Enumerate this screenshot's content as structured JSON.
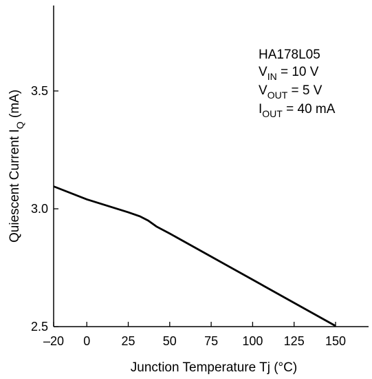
{
  "chart_data": {
    "type": "line",
    "xlabel": "Junction Temperature  Tj  (°C)",
    "ylabel_main": "Quiescent Current  I",
    "ylabel_sub": "Q",
    "ylabel_unit": "  (mA)",
    "xlim": [
      -20,
      150
    ],
    "ylim": [
      2.5,
      4.0
    ],
    "x_ticks": [
      -20,
      0,
      25,
      50,
      75,
      100,
      125,
      150
    ],
    "x_tick_labels": [
      "–20",
      "0",
      "25",
      "50",
      "75",
      "100",
      "125",
      "150"
    ],
    "y_ticks": [
      2.5,
      3.0,
      3.5
    ],
    "y_tick_labels": [
      "2.5",
      "3.0",
      "3.5"
    ],
    "grid": false,
    "legend": "none",
    "series": [
      {
        "x": [
          -20,
          0,
          25,
          32,
          37,
          42,
          50,
          75,
          100,
          125,
          150
        ],
        "y": [
          3.095,
          3.04,
          2.985,
          2.968,
          2.95,
          2.925,
          2.895,
          2.797,
          2.699,
          2.601,
          2.503
        ]
      }
    ],
    "annotation": {
      "line1": "HA178L05",
      "line2_main": "V",
      "line2_sub": "IN",
      "line2_rest": " = 10 V",
      "line3_main": "V",
      "line3_sub": "OUT",
      "line3_rest": " = 5 V",
      "line4_main": "I",
      "line4_sub": "OUT",
      "line4_rest": " = 40 mA"
    }
  }
}
